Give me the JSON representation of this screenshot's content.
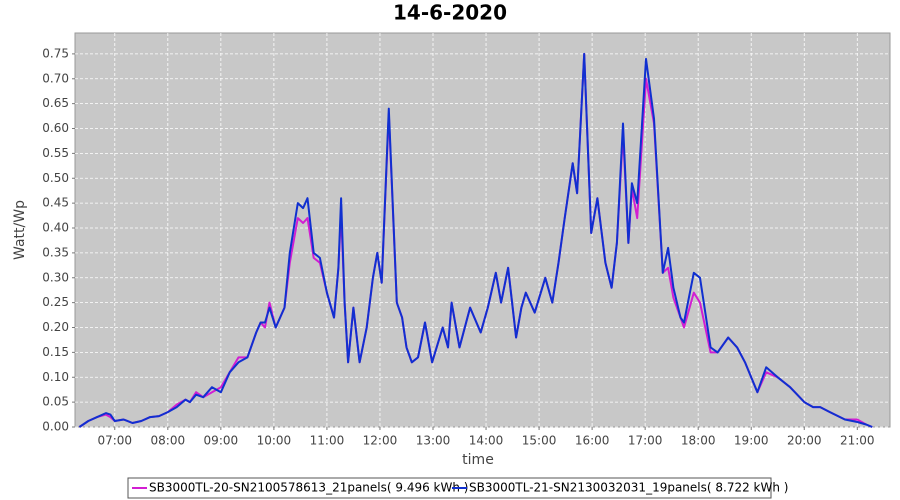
{
  "chart_data": {
    "type": "line",
    "title": "14-6-2020",
    "x_label": "time",
    "y_label": "Watt/Wp",
    "grid": true,
    "legend_position": "bottom",
    "xlim": [
      375,
      1297
    ],
    "ylim": [
      0,
      0.792
    ],
    "xticks": [
      {
        "value": 420,
        "label": "07:00"
      },
      {
        "value": 480,
        "label": "08:00"
      },
      {
        "value": 540,
        "label": "09:00"
      },
      {
        "value": 600,
        "label": "10:00"
      },
      {
        "value": 660,
        "label": "11:00"
      },
      {
        "value": 720,
        "label": "12:00"
      },
      {
        "value": 780,
        "label": "13:00"
      },
      {
        "value": 840,
        "label": "14:00"
      },
      {
        "value": 900,
        "label": "15:00"
      },
      {
        "value": 960,
        "label": "16:00"
      },
      {
        "value": 1020,
        "label": "17:00"
      },
      {
        "value": 1080,
        "label": "18:00"
      },
      {
        "value": 1140,
        "label": "19:00"
      },
      {
        "value": 1200,
        "label": "20:00"
      },
      {
        "value": 1260,
        "label": "21:00"
      }
    ],
    "yticks": [
      {
        "value": 0,
        "label": "0.00"
      },
      {
        "value": 0.05,
        "label": "0.05"
      },
      {
        "value": 0.1,
        "label": "0.10"
      },
      {
        "value": 0.15,
        "label": "0.15"
      },
      {
        "value": 0.2,
        "label": "0.20"
      },
      {
        "value": 0.25,
        "label": "0.25"
      },
      {
        "value": 0.3,
        "label": "0.30"
      },
      {
        "value": 0.35,
        "label": "0.35"
      },
      {
        "value": 0.4,
        "label": "0.40"
      },
      {
        "value": 0.45,
        "label": "0.45"
      },
      {
        "value": 0.5,
        "label": "0.50"
      },
      {
        "value": 0.55,
        "label": "0.55"
      },
      {
        "value": 0.6,
        "label": "0.60"
      },
      {
        "value": 0.65,
        "label": "0.65"
      },
      {
        "value": 0.7,
        "label": "0.70"
      },
      {
        "value": 0.75,
        "label": "0.75"
      }
    ],
    "x": [
      380,
      390,
      400,
      410,
      415,
      420,
      430,
      440,
      450,
      460,
      470,
      480,
      490,
      500,
      505,
      512,
      520,
      530,
      540,
      550,
      560,
      570,
      580,
      585,
      590,
      595,
      602,
      612,
      618,
      627,
      633,
      638,
      645,
      652,
      660,
      668,
      673,
      676,
      680,
      684,
      690,
      697,
      705,
      712,
      717,
      722,
      730,
      739,
      745,
      750,
      756,
      763,
      771,
      779,
      791,
      797,
      801,
      810,
      822,
      834,
      842,
      851,
      857,
      865,
      874,
      880,
      885,
      895,
      907,
      915,
      922,
      929,
      938,
      943,
      951,
      959,
      966,
      975,
      982,
      988,
      995,
      1001,
      1005,
      1011,
      1021,
      1030,
      1040,
      1046,
      1052,
      1060,
      1064,
      1075,
      1082,
      1094,
      1102,
      1114,
      1124,
      1133,
      1140,
      1147,
      1157,
      1170,
      1184,
      1200,
      1210,
      1218,
      1229,
      1246,
      1260,
      1270,
      1277
    ],
    "series": [
      {
        "name": "SB3000TL-20-SN2100578613_21panels( 9.496 kWh )",
        "color": "#d21ed2",
        "values": [
          0,
          0.012,
          0.02,
          0.025,
          0.02,
          0.012,
          0.015,
          0.008,
          0.012,
          0.02,
          0.022,
          0.03,
          0.045,
          0.055,
          0.05,
          0.07,
          0.06,
          0.07,
          0.08,
          0.11,
          0.14,
          0.14,
          0.19,
          0.21,
          0.2,
          0.25,
          0.2,
          0.24,
          0.33,
          0.42,
          0.41,
          0.42,
          0.34,
          0.33,
          0.27,
          0.22,
          0.32,
          0.43,
          0.25,
          0.13,
          0.24,
          0.13,
          0.2,
          0.3,
          0.35,
          0.29,
          0.63,
          0.25,
          0.22,
          0.16,
          0.13,
          0.14,
          0.21,
          0.13,
          0.2,
          0.16,
          0.25,
          0.16,
          0.24,
          0.19,
          0.24,
          0.31,
          0.25,
          0.32,
          0.18,
          0.24,
          0.27,
          0.23,
          0.3,
          0.25,
          0.33,
          0.42,
          0.53,
          0.47,
          0.75,
          0.39,
          0.46,
          0.33,
          0.28,
          0.37,
          0.59,
          0.37,
          0.48,
          0.42,
          0.7,
          0.61,
          0.31,
          0.32,
          0.26,
          0.22,
          0.2,
          0.27,
          0.25,
          0.15,
          0.15,
          0.18,
          0.16,
          0.13,
          0.1,
          0.07,
          0.11,
          0.1,
          0.08,
          0.05,
          0.04,
          0.04,
          0.03,
          0.015,
          0.015,
          0.005,
          0
        ]
      },
      {
        "name": "SB3000TL-21-SN2130032031_19panels( 8.722 kWh )",
        "color": "#1030d0",
        "values": [
          0,
          0.012,
          0.02,
          0.028,
          0.025,
          0.012,
          0.015,
          0.008,
          0.012,
          0.02,
          0.022,
          0.03,
          0.04,
          0.055,
          0.05,
          0.065,
          0.06,
          0.08,
          0.07,
          0.11,
          0.13,
          0.14,
          0.19,
          0.21,
          0.21,
          0.24,
          0.2,
          0.24,
          0.35,
          0.45,
          0.44,
          0.46,
          0.35,
          0.34,
          0.27,
          0.22,
          0.32,
          0.46,
          0.25,
          0.13,
          0.24,
          0.13,
          0.2,
          0.3,
          0.35,
          0.29,
          0.64,
          0.25,
          0.22,
          0.16,
          0.13,
          0.14,
          0.21,
          0.13,
          0.2,
          0.16,
          0.25,
          0.16,
          0.24,
          0.19,
          0.24,
          0.31,
          0.25,
          0.32,
          0.18,
          0.24,
          0.27,
          0.23,
          0.3,
          0.25,
          0.33,
          0.42,
          0.53,
          0.47,
          0.75,
          0.39,
          0.46,
          0.33,
          0.28,
          0.37,
          0.61,
          0.37,
          0.49,
          0.45,
          0.74,
          0.62,
          0.31,
          0.36,
          0.28,
          0.22,
          0.21,
          0.31,
          0.3,
          0.16,
          0.15,
          0.18,
          0.16,
          0.13,
          0.1,
          0.07,
          0.12,
          0.1,
          0.08,
          0.05,
          0.04,
          0.04,
          0.03,
          0.015,
          0.01,
          0.005,
          0
        ]
      }
    ]
  }
}
